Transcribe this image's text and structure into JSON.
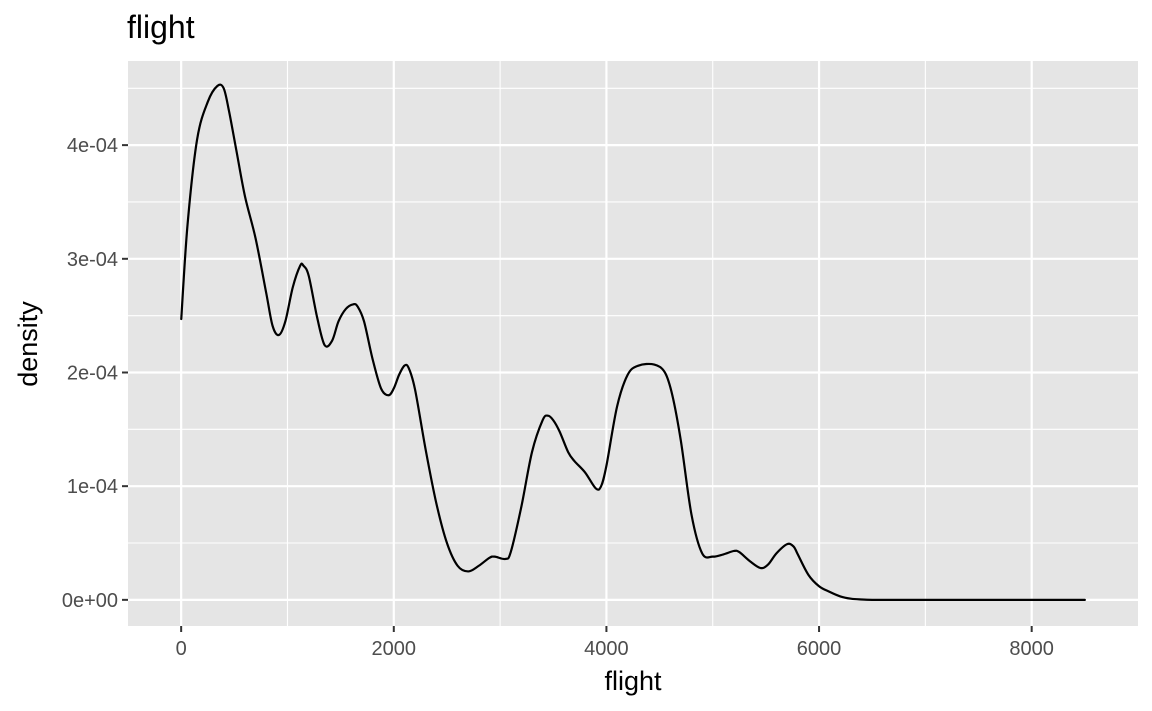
{
  "chart_data": {
    "type": "line",
    "title": "flight",
    "xlabel": "flight",
    "ylabel": "density",
    "xlim": [
      -500,
      9000
    ],
    "ylim": [
      -2.3e-05,
      0.000474
    ],
    "x_ticks": [
      0,
      2000,
      4000,
      6000,
      8000
    ],
    "x_tick_labels": [
      "0",
      "2000",
      "4000",
      "6000",
      "8000"
    ],
    "y_ticks": [
      0,
      0.0001,
      0.0002,
      0.0003,
      0.0004
    ],
    "y_tick_labels": [
      "0e+00",
      "1e-04",
      "2e-04",
      "3e-04",
      "4e-04"
    ],
    "grid": true,
    "panel_background": "#e5e5e5",
    "line_color": "#000000",
    "series": [
      {
        "x": [
          1,
          60,
          150,
          250,
          340,
          400,
          450,
          520,
          600,
          700,
          800,
          860,
          920,
          980,
          1050,
          1120,
          1150,
          1200,
          1280,
          1350,
          1420,
          1480,
          1550,
          1620,
          1660,
          1720,
          1800,
          1880,
          1950,
          2000,
          2050,
          2100,
          2140,
          2200,
          2300,
          2400,
          2500,
          2600,
          2700,
          2800,
          2900,
          2950,
          3050,
          3100,
          3200,
          3300,
          3400,
          3450,
          3500,
          3560,
          3640,
          3700,
          3800,
          3900,
          3950,
          4000,
          4100,
          4200,
          4300,
          4450,
          4550,
          4620,
          4700,
          4800,
          4900,
          5000,
          5100,
          5200,
          5250,
          5350,
          5450,
          5520,
          5600,
          5700,
          5760,
          5800,
          5900,
          6000,
          6100,
          6200,
          6300,
          6400,
          6500,
          6700,
          7000,
          7500,
          8000,
          8500
        ],
        "y": [
          0.000247,
          0.00033,
          0.000405,
          0.000438,
          0.000452,
          0.00045,
          0.00043,
          0.000395,
          0.000355,
          0.000318,
          0.00027,
          0.000241,
          0.000233,
          0.000245,
          0.000275,
          0.000294,
          0.000294,
          0.000285,
          0.000248,
          0.000224,
          0.000228,
          0.000245,
          0.000256,
          0.00026,
          0.000258,
          0.000245,
          0.000212,
          0.000186,
          0.00018,
          0.000186,
          0.000198,
          0.000206,
          0.000204,
          0.000185,
          0.000132,
          8.5e-05,
          5e-05,
          3e-05,
          2.5e-05,
          3e-05,
          3.7e-05,
          3.8e-05,
          3.6e-05,
          4.2e-05,
          8.2e-05,
          0.00013,
          0.000158,
          0.000162,
          0.000158,
          0.000148,
          0.00013,
          0.000122,
          0.000112,
          9.8e-05,
          0.0001,
          0.000118,
          0.00017,
          0.000198,
          0.000206,
          0.000207,
          0.0002,
          0.00018,
          0.00014,
          7.5e-05,
          4.1e-05,
          3.8e-05,
          4e-05,
          4.3e-05,
          4.2e-05,
          3.4e-05,
          2.8e-05,
          3.1e-05,
          4.1e-05,
          4.9e-05,
          4.7e-05,
          4e-05,
          2.2e-05,
          1.2e-05,
          7e-06,
          3e-06,
          1e-06,
          3e-07,
          0.0,
          0.0,
          0.0,
          0.0,
          0.0,
          0.0
        ]
      }
    ]
  }
}
